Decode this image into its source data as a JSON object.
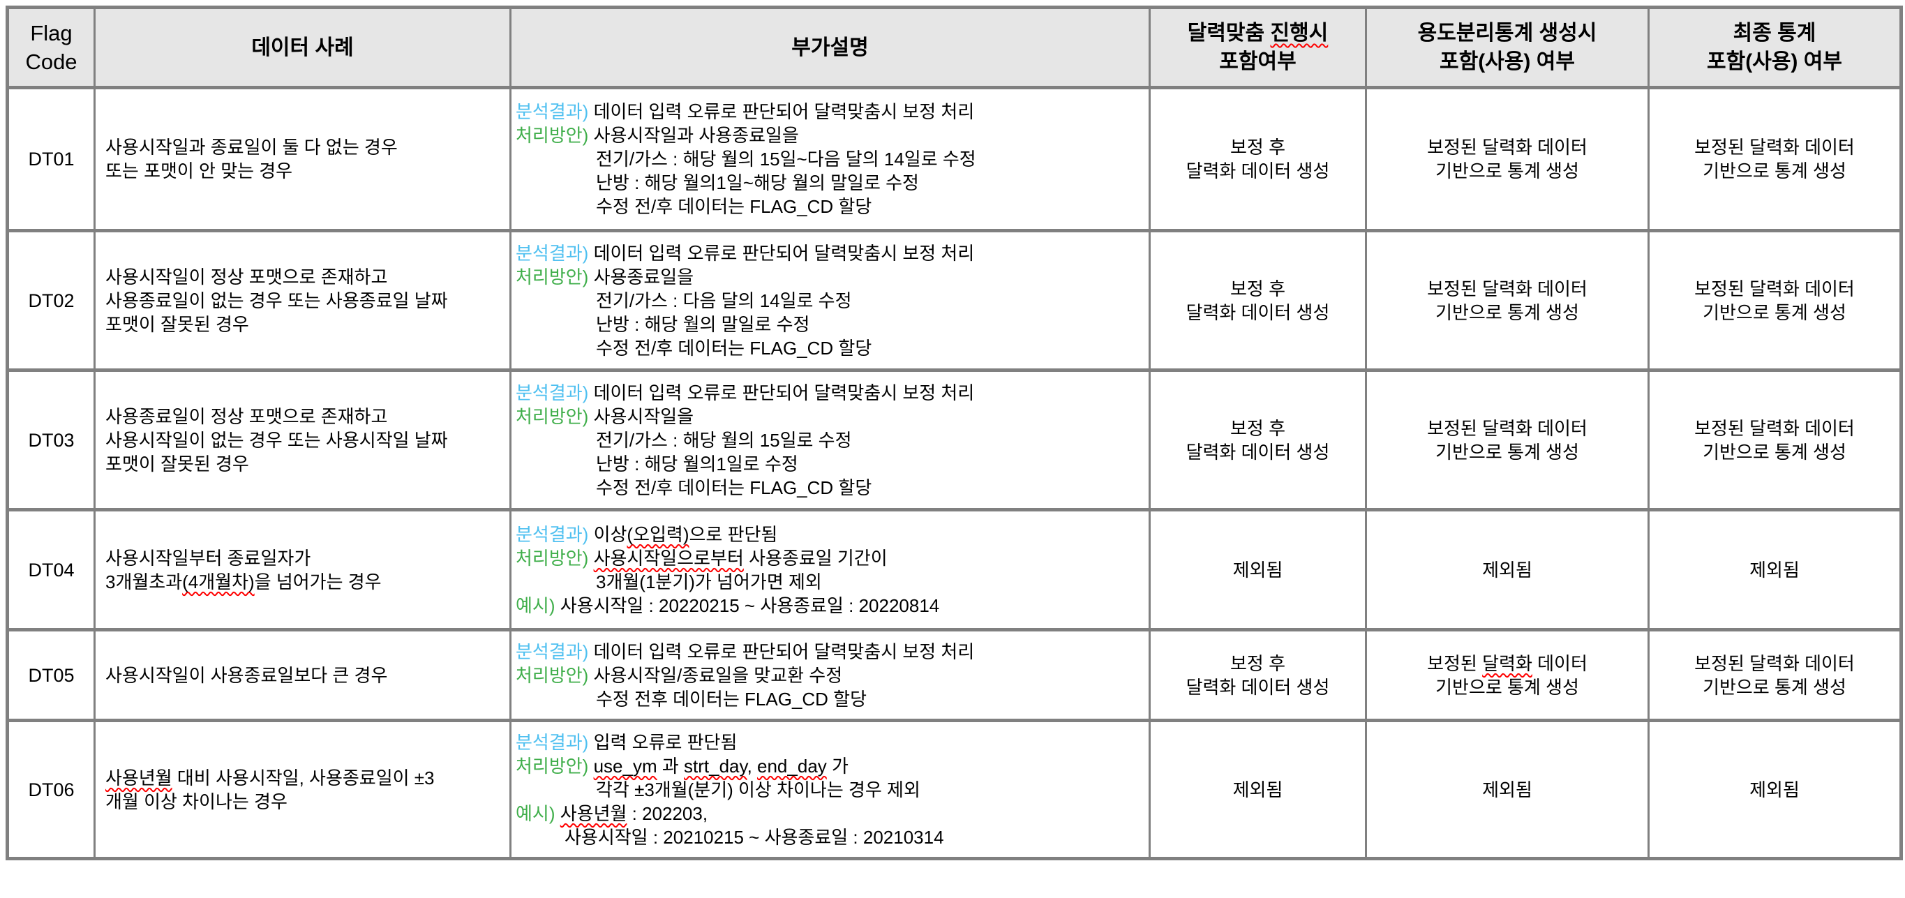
{
  "colors": {
    "label_blue": "#4fc0f0",
    "label_green": "#3fae4a",
    "squiggle_red": "#ff0000",
    "border_gray": "#808080",
    "header_bg": "#e6e6e6"
  },
  "table": {
    "headers": [
      {
        "id": "flag-code",
        "lines": [
          {
            "text": "Flag"
          },
          {
            "text": "Code"
          }
        ]
      },
      {
        "id": "data-case",
        "lines": [
          {
            "text": "데이터 사례"
          }
        ]
      },
      {
        "id": "description",
        "lines": [
          {
            "text": "부가설명"
          }
        ]
      },
      {
        "id": "calendar-inclusion",
        "lines": [
          {
            "text": "달력맞춤 진행시",
            "squiggles": [
              "진행시"
            ]
          },
          {
            "text": "포함여부"
          }
        ]
      },
      {
        "id": "usage-stat-inclusion",
        "lines": [
          {
            "text": "용도분리통계 생성시"
          },
          {
            "text": "포함(사용) 여부"
          }
        ]
      },
      {
        "id": "final-stat-inclusion",
        "lines": [
          {
            "text": "최종 통계"
          },
          {
            "text": "포함(사용) 여부"
          }
        ]
      }
    ],
    "rows": [
      {
        "code": "DT01",
        "case": [
          {
            "text": "사용시작일과 종료일이 둘 다 없는 경우"
          },
          {
            "text": "또는 포맷이 안 맞는 경우"
          }
        ],
        "detail": [
          {
            "label": "분석결과)",
            "label_color": "blue",
            "text": "데이터 입력 오류로 판단되어 달력맞춤시 보정 처리"
          },
          {
            "label": "처리방안)",
            "label_color": "green",
            "text": "사용시작일과 사용종료일을"
          },
          {
            "indent": 1,
            "text": "전기/가스 : 해당 월의 15일~다음 달의 14일로 수정"
          },
          {
            "indent": 1,
            "text": "난방 : 해당 월의1일~해당 월의 말일로 수정"
          },
          {
            "indent": 1,
            "text": "수정 전/후 데이터는 FLAG_CD 할당"
          }
        ],
        "calendar": [
          {
            "text": "보정 후"
          },
          {
            "text": "달력화 데이터 생성"
          }
        ],
        "usage": [
          {
            "text": "보정된 달력화 데이터"
          },
          {
            "text": "기반으로 통계 생성"
          }
        ],
        "final": [
          {
            "text": "보정된 달력화 데이터"
          },
          {
            "text": "기반으로 통계 생성"
          }
        ]
      },
      {
        "code": "DT02",
        "case": [
          {
            "text": "사용시작일이 정상 포맷으로 존재하고"
          },
          {
            "text": "사용종료일이 없는 경우 또는 사용종료일 날짜"
          },
          {
            "text": "포맷이 잘못된 경우"
          }
        ],
        "detail": [
          {
            "label": "분석결과)",
            "label_color": "blue",
            "text": "데이터 입력 오류로 판단되어 달력맞춤시 보정 처리"
          },
          {
            "label": "처리방안)",
            "label_color": "green",
            "text": "사용종료일을"
          },
          {
            "indent": 1,
            "text": "전기/가스 : 다음 달의 14일로 수정"
          },
          {
            "indent": 1,
            "text": "난방 : 해당 월의 말일로 수정"
          },
          {
            "indent": 1,
            "text": "수정 전/후 데이터는 FLAG_CD 할당"
          }
        ],
        "calendar": [
          {
            "text": "보정 후"
          },
          {
            "text": "달력화 데이터 생성"
          }
        ],
        "usage": [
          {
            "text": "보정된 달력화 데이터"
          },
          {
            "text": "기반으로 통계 생성"
          }
        ],
        "final": [
          {
            "text": "보정된 달력화 데이터"
          },
          {
            "text": "기반으로 통계 생성"
          }
        ]
      },
      {
        "code": "DT03",
        "case": [
          {
            "text": "사용종료일이 정상 포맷으로 존재하고"
          },
          {
            "text": "사용시작일이 없는 경우 또는 사용시작일 날짜"
          },
          {
            "text": "포맷이 잘못된 경우"
          }
        ],
        "detail": [
          {
            "label": "분석결과)",
            "label_color": "blue",
            "text": "데이터 입력 오류로 판단되어 달력맞춤시 보정 처리"
          },
          {
            "label": "처리방안)",
            "label_color": "green",
            "text": "사용시작일을"
          },
          {
            "indent": 1,
            "text": "전기/가스 : 해당 월의 15일로 수정"
          },
          {
            "indent": 1,
            "text": "난방 : 해당 월의1일로 수정"
          },
          {
            "indent": 1,
            "text": "수정 전/후 데이터는 FLAG_CD 할당"
          }
        ],
        "calendar": [
          {
            "text": "보정 후"
          },
          {
            "text": "달력화 데이터 생성"
          }
        ],
        "usage": [
          {
            "text": "보정된 달력화 데이터"
          },
          {
            "text": "기반으로 통계 생성"
          }
        ],
        "final": [
          {
            "text": "보정된 달력화 데이터"
          },
          {
            "text": "기반으로 통계 생성"
          }
        ]
      },
      {
        "code": "DT04",
        "case": [
          {
            "text": "사용시작일부터 종료일자가"
          },
          {
            "text": "3개월초과(4개월차)을 넘어가는 경우",
            "squiggles": [
              "(4개월차)"
            ]
          }
        ],
        "detail": [
          {
            "label": "분석결과)",
            "label_color": "blue",
            "text": "이상(오입력)으로 판단됨",
            "squiggles": [
              "(오입력)"
            ]
          },
          {
            "label": "처리방안)",
            "label_color": "green",
            "text": "사용시작일으로부터 사용종료일 기간이",
            "squiggles": [
              "사용시작일으로부터"
            ]
          },
          {
            "indent": 1,
            "text": "3개월(1분기)가 넘어가면 제외"
          },
          {
            "label": "예시)",
            "label_color": "green",
            "text": "사용시작일 : 20220215  ~ 사용종료일 : 20220814"
          }
        ],
        "calendar": [
          {
            "text": "제외됨"
          }
        ],
        "usage": [
          {
            "text": "제외됨"
          }
        ],
        "final": [
          {
            "text": "제외됨"
          }
        ]
      },
      {
        "code": "DT05",
        "case": [
          {
            "text": "사용시작일이 사용종료일보다 큰 경우"
          }
        ],
        "detail": [
          {
            "label": "분석결과)",
            "label_color": "blue",
            "text": "데이터 입력 오류로 판단되어 달력맞춤시 보정 처리"
          },
          {
            "label": "처리방안)",
            "label_color": "green",
            "text": "사용시작일/종료일을 맞교환 수정"
          },
          {
            "indent": 1,
            "text": "수정 전후 데이터는 FLAG_CD 할당"
          }
        ],
        "calendar": [
          {
            "text": "보정 후"
          },
          {
            "text": "달력화 데이터 생성"
          }
        ],
        "usage": [
          {
            "text": "보정된 달력화 데이터",
            "squiggles": [
              "달력화"
            ]
          },
          {
            "text": "기반으로 통계 생성"
          }
        ],
        "final": [
          {
            "text": "보정된 달력화 데이터"
          },
          {
            "text": "기반으로 통계 생성"
          }
        ]
      },
      {
        "code": "DT06",
        "case": [
          {
            "text": "사용년월 대비 사용시작일, 사용종료일이 ±3",
            "squiggles": [
              "사용년월"
            ]
          },
          {
            "text": "개월 이상 차이나는 경우"
          }
        ],
        "detail": [
          {
            "label": "분석결과)",
            "label_color": "blue",
            "text": "입력 오류로 판단됨"
          },
          {
            "label": "처리방안)",
            "label_color": "green",
            "text": "use_ym 과 strt_day, end_day 가",
            "squiggles": [
              "use_ym",
              "strt_day",
              "end_day"
            ]
          },
          {
            "indent": 1,
            "text": "각각 ±3개월(분기) 이상 차이나는 경우 제외"
          },
          {
            "label": "예시)",
            "label_color": "green",
            "text": "사용년월 : 202203,",
            "squiggles": [
              "사용년월"
            ]
          },
          {
            "indent": 2,
            "text": "사용시작일 : 20210215 ~ 사용종료일 : 20210314"
          }
        ],
        "calendar": [
          {
            "text": "제외됨"
          }
        ],
        "usage": [
          {
            "text": "제외됨"
          }
        ],
        "final": [
          {
            "text": "제외됨"
          }
        ]
      }
    ]
  }
}
